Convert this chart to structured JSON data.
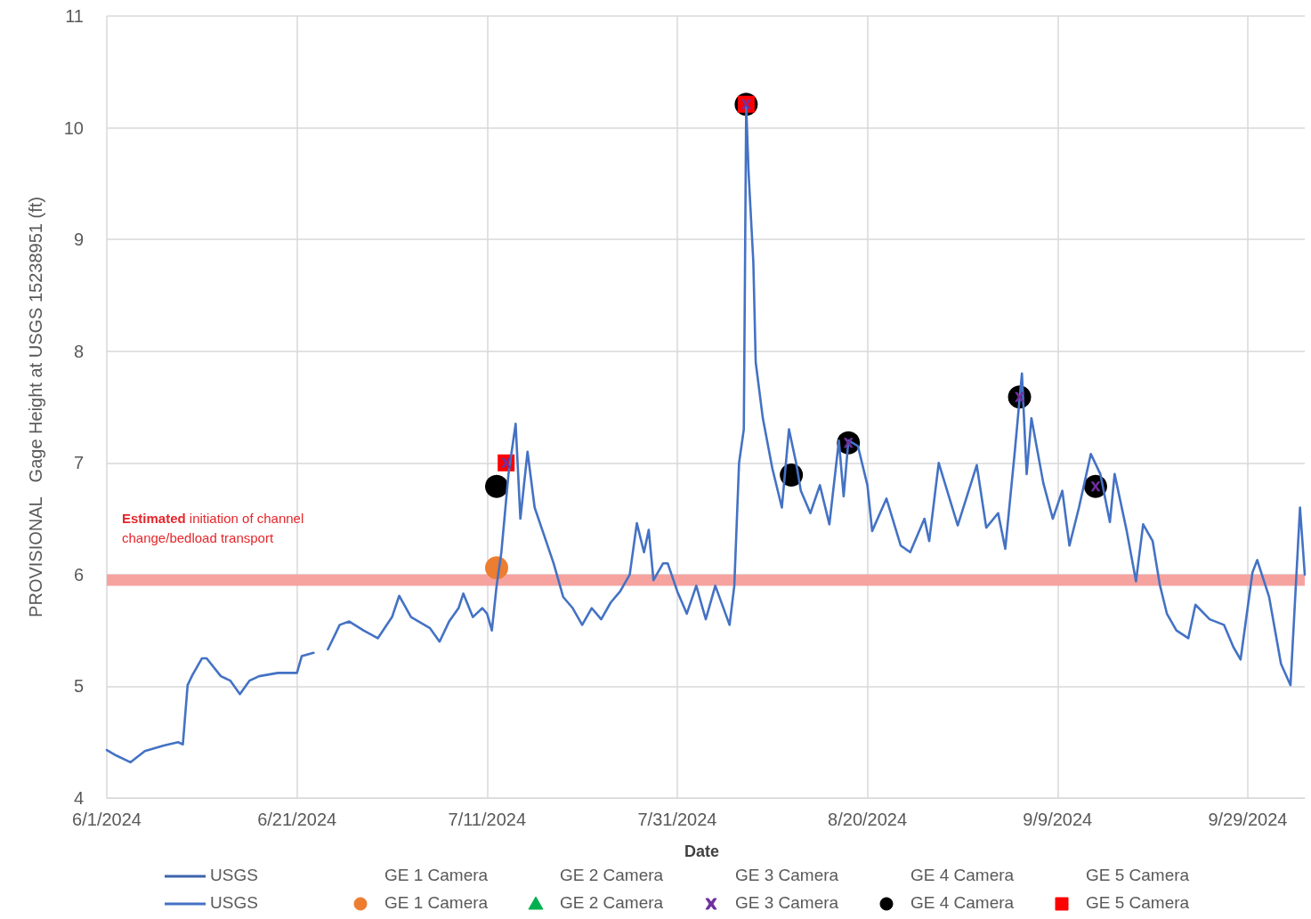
{
  "chart_data": {
    "type": "line",
    "xlabel": "Date",
    "ylabel": "PROVISIONAL   Gage Height at USGS 15238951 (ft)",
    "xlim": [
      "2024-06-01",
      "2024-10-05"
    ],
    "xticks": [
      {
        "value": "2024-06-01",
        "label": "6/1/2024"
      },
      {
        "value": "2024-06-21",
        "label": "6/21/2024"
      },
      {
        "value": "2024-07-11",
        "label": "7/11/2024"
      },
      {
        "value": "2024-07-31",
        "label": "7/31/2024"
      },
      {
        "value": "2024-08-20",
        "label": "8/20/2024"
      },
      {
        "value": "2024-09-09",
        "label": "9/9/2024"
      },
      {
        "value": "2024-09-29",
        "label": "9/29/2024"
      }
    ],
    "ylim": [
      4,
      11
    ],
    "yticks": [
      4,
      5,
      6,
      7,
      8,
      9,
      10,
      11
    ],
    "grid": true,
    "legend": "bottom",
    "bands": [
      {
        "axis": "y",
        "from": 5.9,
        "to": 6.0,
        "label": "Estimated initiation of channel change/bedload transport",
        "color": "#f6a3a0"
      }
    ],
    "series": [
      {
        "name": "USGS",
        "color": "#3c64ad",
        "marker": "none"
      },
      {
        "name": "GE 1 Camera",
        "type": "scatter",
        "marker": "none"
      },
      {
        "name": "GE 2 Camera",
        "type": "scatter",
        "marker": "none"
      },
      {
        "name": "GE 3 Camera",
        "type": "scatter",
        "marker": "none"
      },
      {
        "name": "GE 4 Camera",
        "type": "scatter",
        "marker": "none"
      },
      {
        "name": "GE 5 Camera",
        "type": "scatter",
        "marker": "none"
      },
      {
        "name": "USGS",
        "color": "#4472c4",
        "marker": "none",
        "x": [
          "2024-06-01",
          "2024-06-02",
          "2024-06-03T12:00",
          "2024-06-05",
          "2024-06-07",
          "2024-06-08T12:00",
          "2024-06-09",
          "2024-06-09T12:00",
          "2024-06-10",
          "2024-06-11",
          "2024-06-11T12:00",
          "2024-06-13",
          "2024-06-14",
          "2024-06-15",
          "2024-06-16",
          "2024-06-17",
          "2024-06-19",
          "2024-06-21",
          "2024-06-21T12:00",
          "2024-06-22T18:00",
          "2024-06-23T12:00",
          "2024-06-24T06:00",
          "2024-06-25T12:00",
          "2024-06-26T12:00",
          "2024-06-28",
          "2024-06-29T12:00",
          "2024-07-01",
          "2024-07-01T18:00",
          "2024-07-03",
          "2024-07-05",
          "2024-07-06",
          "2024-07-07",
          "2024-07-08",
          "2024-07-08T12:00",
          "2024-07-09T12:00",
          "2024-07-10T12:00",
          "2024-07-11",
          "2024-07-11T12:00",
          "2024-07-12",
          "2024-07-12T12:00",
          "2024-07-13T06:00",
          "2024-07-14",
          "2024-07-14T12:00",
          "2024-07-15T06:00",
          "2024-07-16",
          "2024-07-17",
          "2024-07-18",
          "2024-07-19",
          "2024-07-20",
          "2024-07-21",
          "2024-07-22",
          "2024-07-23",
          "2024-07-24",
          "2024-07-25",
          "2024-07-26",
          "2024-07-26T18:00",
          "2024-07-27T12:00",
          "2024-07-28",
          "2024-07-28T12:00",
          "2024-07-29T12:00",
          "2024-07-30",
          "2024-07-31",
          "2024-08-01",
          "2024-08-02",
          "2024-08-03",
          "2024-08-04",
          "2024-08-05T12:00",
          "2024-08-06",
          "2024-08-06T12:00",
          "2024-08-07",
          "2024-08-07T06:00",
          "2024-08-07T12:00",
          "2024-08-08",
          "2024-08-08T06:00",
          "2024-08-09",
          "2024-08-10",
          "2024-08-11",
          "2024-08-11T18:00",
          "2024-08-12T12:00",
          "2024-08-13",
          "2024-08-14",
          "2024-08-15",
          "2024-08-16",
          "2024-08-17",
          "2024-08-17T12:00",
          "2024-08-18",
          "2024-08-19",
          "2024-08-20",
          "2024-08-20T12:00",
          "2024-08-22",
          "2024-08-23T12:00",
          "2024-08-24T12:00",
          "2024-08-26",
          "2024-08-26T12:00",
          "2024-08-27T12:00",
          "2024-08-29T12:00",
          "2024-08-31T12:00",
          "2024-09-01T12:00",
          "2024-09-02T18:00",
          "2024-09-03T12:00",
          "2024-09-04T12:00",
          "2024-09-05T06:00",
          "2024-09-05T18:00",
          "2024-09-06T06:00",
          "2024-09-07T12:00",
          "2024-09-08T12:00",
          "2024-09-09T12:00",
          "2024-09-10T06:00",
          "2024-09-11T06:00",
          "2024-09-12T12:00",
          "2024-09-13T12:00",
          "2024-09-14T12:00",
          "2024-09-15",
          "2024-09-16T06:00",
          "2024-09-17T06:00",
          "2024-09-18",
          "2024-09-19",
          "2024-09-19T18:00",
          "2024-09-20T12:00",
          "2024-09-21T12:00",
          "2024-09-22T18:00",
          "2024-09-23T12:00",
          "2024-09-25",
          "2024-09-26T12:00",
          "2024-09-27T12:00",
          "2024-09-28T06:00",
          "2024-09-29T12:00",
          "2024-09-30",
          "2024-10-01T06:00",
          "2024-10-02T12:00",
          "2024-10-03T12:00",
          "2024-10-04T12:00",
          "2024-10-05"
        ],
        "values": [
          4.43,
          4.38,
          4.32,
          4.42,
          4.47,
          4.5,
          4.48,
          5.01,
          5.1,
          5.25,
          5.25,
          5.09,
          5.05,
          4.93,
          5.05,
          5.09,
          5.12,
          5.12,
          5.27,
          5.3,
          null,
          5.33,
          5.55,
          5.58,
          5.5,
          5.43,
          5.62,
          5.81,
          5.62,
          5.52,
          5.4,
          5.58,
          5.7,
          5.83,
          5.62,
          5.7,
          5.65,
          5.5,
          5.9,
          6.2,
          6.9,
          7.35,
          6.5,
          7.1,
          6.6,
          6.35,
          6.1,
          5.8,
          5.7,
          5.55,
          5.7,
          5.6,
          5.75,
          5.85,
          6.0,
          6.46,
          6.2,
          6.4,
          5.95,
          6.1,
          6.1,
          5.85,
          5.65,
          5.9,
          5.6,
          5.9,
          5.55,
          5.9,
          7.0,
          7.3,
          10.2,
          9.6,
          8.8,
          7.9,
          7.4,
          6.95,
          6.6,
          7.3,
          7.0,
          6.75,
          6.55,
          6.8,
          6.45,
          7.2,
          6.7,
          7.2,
          7.15,
          6.8,
          6.39,
          6.68,
          6.26,
          6.2,
          6.5,
          6.3,
          7.0,
          6.44,
          6.98,
          6.42,
          6.55,
          6.23,
          7.1,
          7.8,
          6.9,
          7.4,
          6.82,
          6.5,
          6.75,
          6.26,
          6.6,
          7.08,
          6.9,
          6.47,
          6.9,
          6.4,
          5.94,
          6.45,
          6.3,
          5.91,
          5.65,
          5.5,
          5.43,
          5.73,
          5.6,
          5.55,
          5.35,
          5.24,
          6.02,
          6.13,
          5.8,
          5.2,
          5.01,
          6.6,
          6.0
        ]
      },
      {
        "name": "GE 1 Camera",
        "type": "scatter",
        "color": "#ed7d31",
        "marker": "circle",
        "x": [
          "2024-07-12"
        ],
        "values": [
          6.06
        ]
      },
      {
        "name": "GE 2 Camera",
        "type": "scatter",
        "color": "#00b050",
        "marker": "triangle"
      },
      {
        "name": "GE 3 Camera",
        "type": "scatter",
        "color": "#7030a0",
        "marker": "cross",
        "x": [
          "2024-07-13",
          "2024-08-07T06:00",
          "2024-08-18",
          "2024-09-05",
          "2024-09-13"
        ],
        "values": [
          7.0,
          10.21,
          7.18,
          7.59,
          6.79
        ]
      },
      {
        "name": "GE 4 Camera",
        "type": "scatter",
        "color": "#000000",
        "marker": "circle",
        "x": [
          "2024-07-12",
          "2024-08-07T06:00",
          "2024-08-12",
          "2024-08-18",
          "2024-09-05",
          "2024-09-13"
        ],
        "values": [
          6.79,
          10.21,
          6.89,
          7.18,
          7.59,
          6.79
        ]
      },
      {
        "name": "GE 5 Camera",
        "type": "scatter",
        "color": "#ff0000",
        "marker": "square",
        "x": [
          "2024-07-13",
          "2024-08-07T06:00"
        ],
        "values": [
          7.0,
          10.21
        ]
      }
    ]
  }
}
